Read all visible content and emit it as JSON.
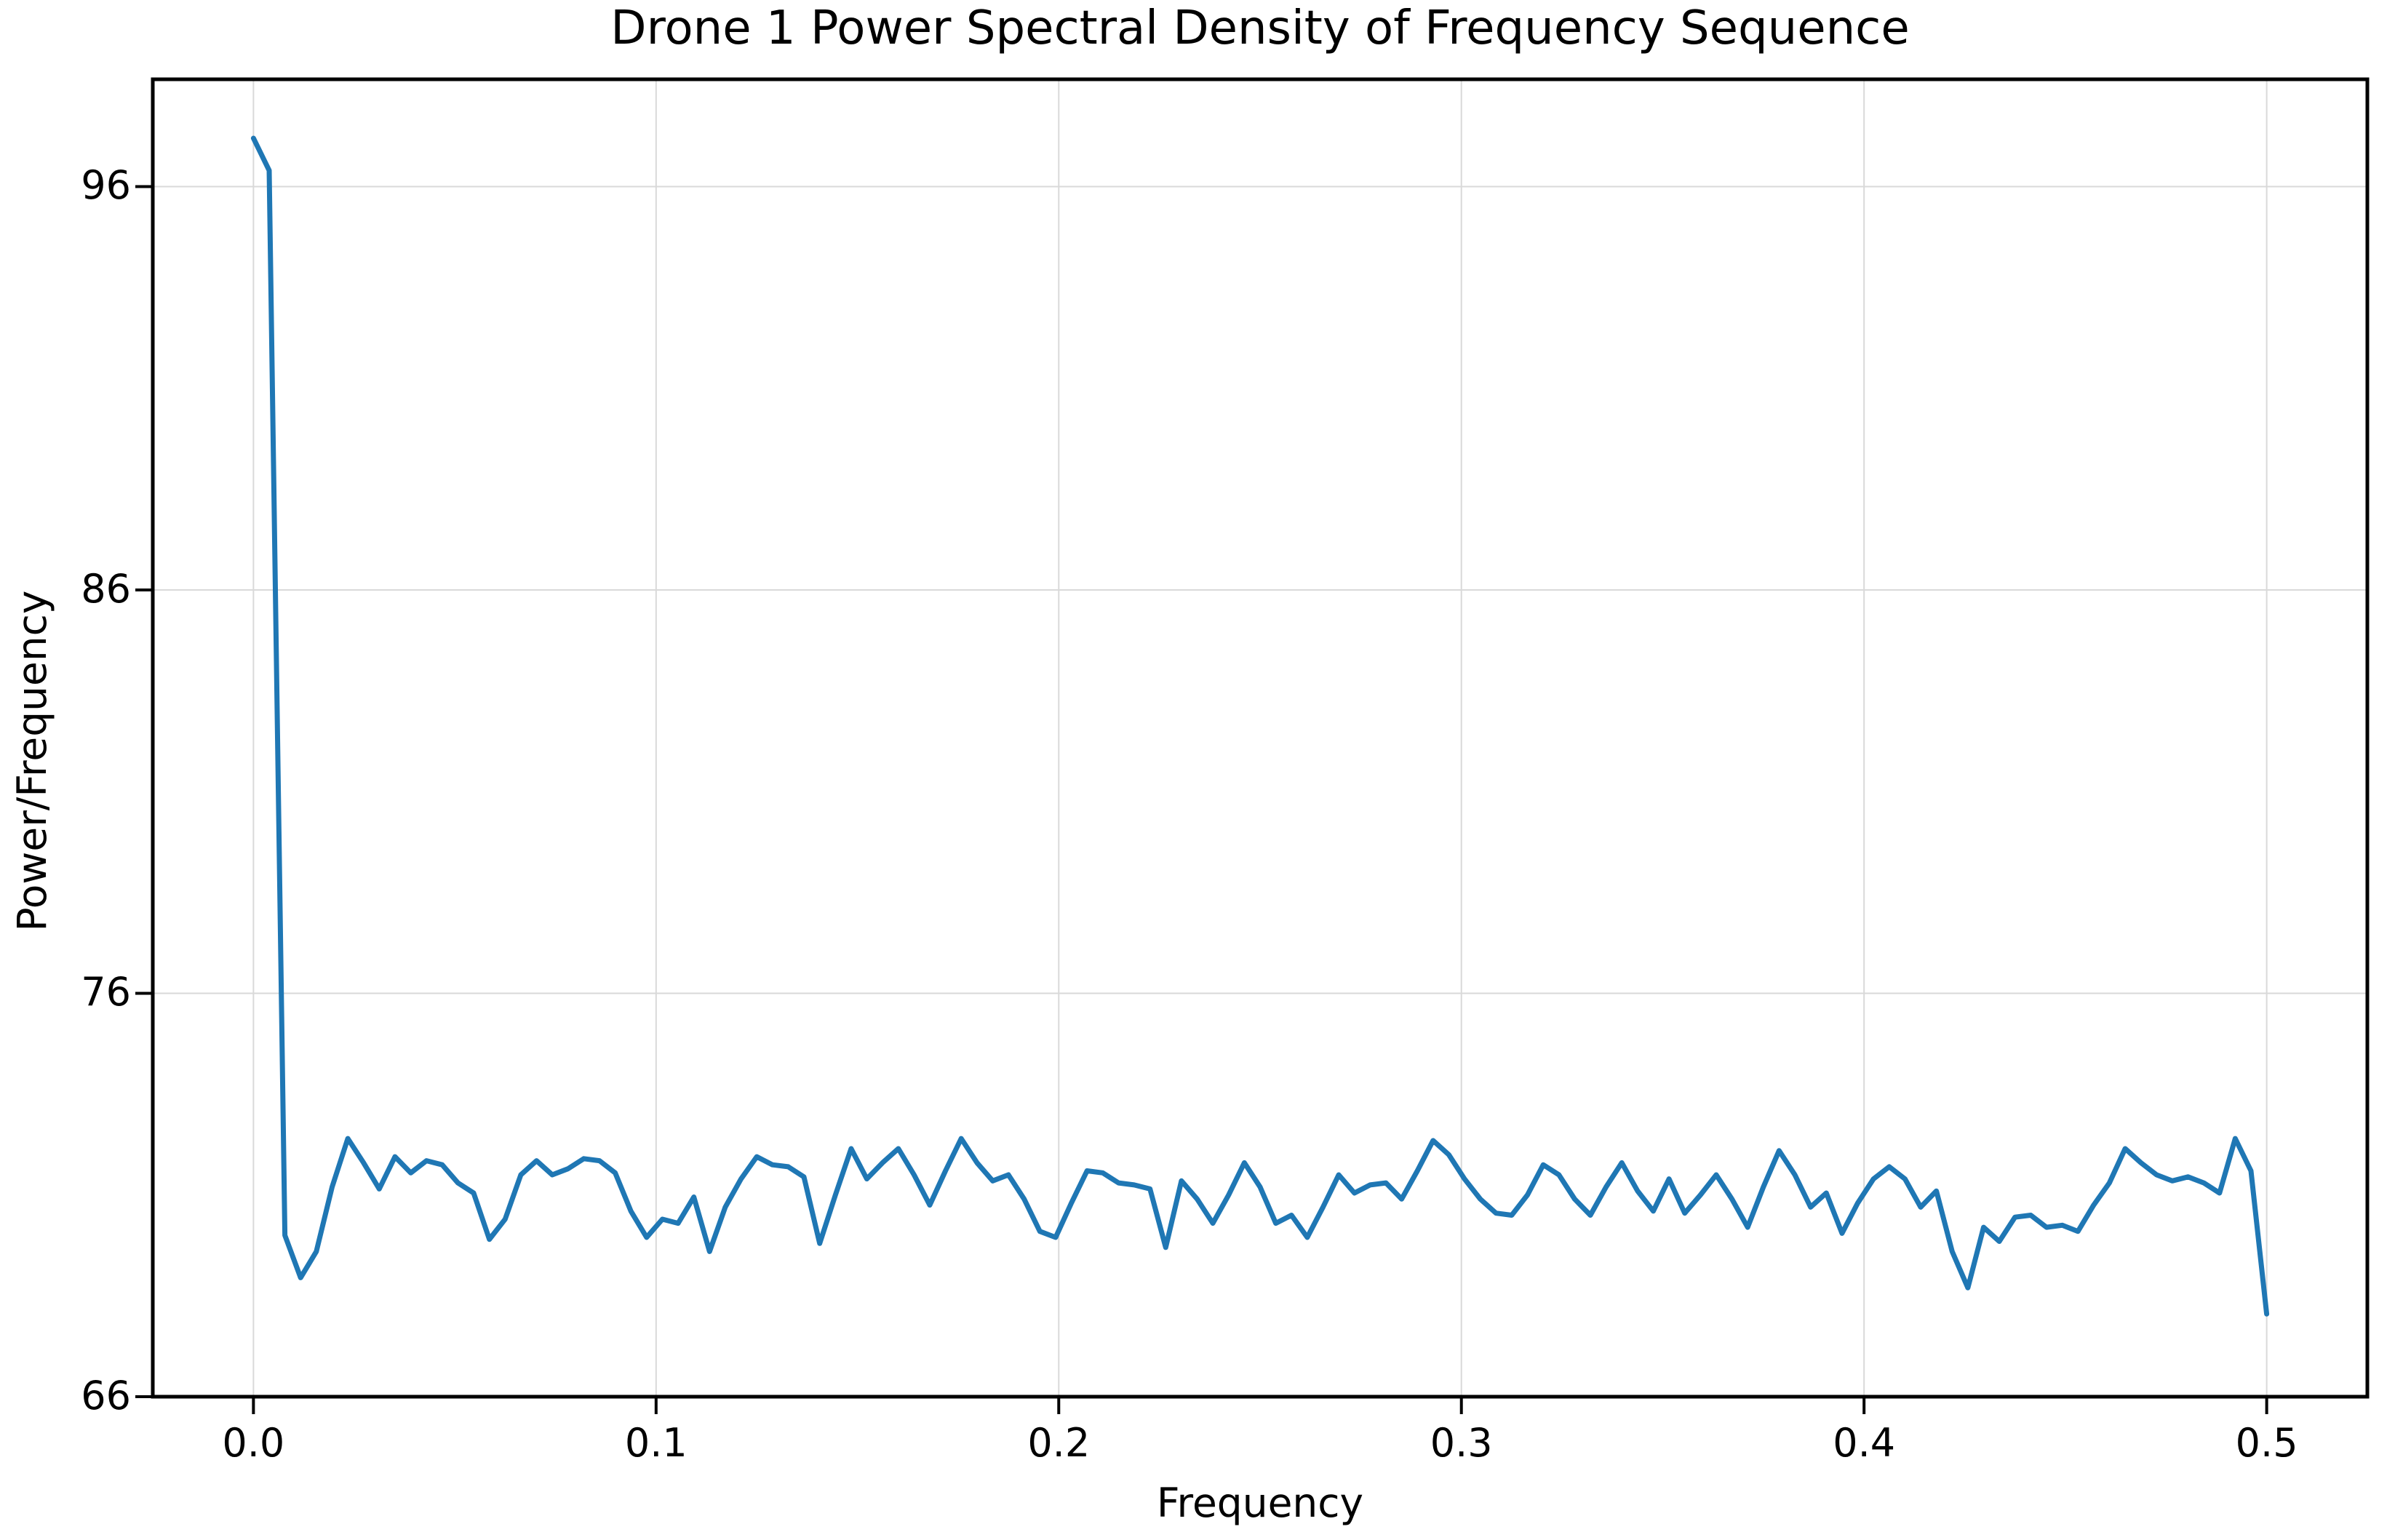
{
  "title": "Drone 1 Power Spectral Density of Frequency Sequence",
  "axes": {
    "xlabel": "Frequency",
    "ylabel": "Power/Frequency",
    "x_tick_labels": [
      "0.0",
      "0.1",
      "0.2",
      "0.3",
      "0.4",
      "0.5"
    ],
    "x_tick_values": [
      0.0,
      0.1,
      0.2,
      0.3,
      0.4,
      0.5
    ],
    "y_tick_labels": [
      "96",
      "86",
      "76",
      "66"
    ],
    "y_tick_values": [
      96,
      86,
      76,
      66
    ]
  },
  "colors": {
    "line": "#1f77b4",
    "grid": "#d9d9d9",
    "spine": "#000000",
    "background": "#ffffff",
    "text": "#000000"
  },
  "chart_data": {
    "type": "line",
    "title": "Drone 1 Power Spectral Density of Frequency Sequence",
    "xlabel": "Frequency",
    "ylabel": "Power/Frequency",
    "legend_position": "none",
    "grid": "on",
    "xlim": [
      -0.025,
      0.525
    ],
    "ylim": [
      66,
      98.66
    ],
    "x_start": 0,
    "x_step": 0.00390625,
    "x": [
      0.0,
      0.003906,
      0.007813,
      0.011719,
      0.015625,
      0.019531,
      0.023438,
      0.027344,
      0.03125,
      0.035156,
      0.039063,
      0.042969,
      0.046875,
      0.050781,
      0.054688,
      0.058594,
      0.0625,
      0.066406,
      0.070313,
      0.074219,
      0.078125,
      0.082031,
      0.085938,
      0.089844,
      0.09375,
      0.097656,
      0.101563,
      0.105469,
      0.109375,
      0.113281,
      0.117188,
      0.121094,
      0.125,
      0.128906,
      0.132813,
      0.136719,
      0.140625,
      0.144531,
      0.148438,
      0.152344,
      0.15625,
      0.160156,
      0.164063,
      0.167969,
      0.171875,
      0.175781,
      0.179688,
      0.183594,
      0.1875,
      0.191406,
      0.195313,
      0.199219,
      0.203125,
      0.207031,
      0.210938,
      0.214844,
      0.21875,
      0.222656,
      0.226563,
      0.230469,
      0.234375,
      0.238281,
      0.242188,
      0.246094,
      0.25,
      0.253906,
      0.257813,
      0.261719,
      0.265625,
      0.269531,
      0.273438,
      0.277344,
      0.28125,
      0.285156,
      0.289063,
      0.292969,
      0.296875,
      0.300781,
      0.304688,
      0.308594,
      0.3125,
      0.316406,
      0.320313,
      0.324219,
      0.328125,
      0.332031,
      0.335938,
      0.339844,
      0.34375,
      0.347656,
      0.351563,
      0.355469,
      0.359375,
      0.363281,
      0.367188,
      0.371094,
      0.375,
      0.378906,
      0.382813,
      0.386719,
      0.390625,
      0.394531,
      0.398438,
      0.402344,
      0.40625,
      0.410156,
      0.414063,
      0.417969,
      0.421875,
      0.425781,
      0.429688,
      0.433594,
      0.4375,
      0.441406,
      0.445313,
      0.449219,
      0.453125,
      0.457031,
      0.460938,
      0.464844,
      0.46875,
      0.472656,
      0.476563,
      0.480469,
      0.484375,
      0.488281,
      0.492188,
      0.496094,
      0.5
    ],
    "values": [
      97.2,
      96.4,
      70.0,
      68.95,
      69.6,
      71.2,
      72.4,
      71.8,
      71.15,
      71.95,
      71.55,
      71.85,
      71.75,
      71.3,
      71.05,
      69.9,
      70.4,
      71.5,
      71.85,
      71.5,
      71.65,
      71.9,
      71.85,
      71.55,
      70.6,
      69.95,
      70.4,
      70.3,
      70.95,
      69.6,
      70.7,
      71.4,
      71.95,
      71.75,
      71.7,
      71.45,
      69.8,
      71.0,
      72.15,
      71.4,
      71.8,
      72.15,
      71.5,
      70.75,
      71.6,
      72.4,
      71.8,
      71.35,
      71.5,
      70.9,
      70.1,
      69.95,
      70.8,
      71.6,
      71.55,
      71.3,
      71.25,
      71.15,
      69.7,
      71.35,
      70.9,
      70.3,
      71.0,
      71.8,
      71.2,
      70.3,
      70.5,
      69.95,
      70.7,
      71.5,
      71.05,
      71.25,
      71.3,
      70.9,
      71.6,
      72.35,
      72.0,
      71.4,
      70.9,
      70.55,
      70.5,
      71.0,
      71.75,
      71.5,
      70.9,
      70.5,
      71.2,
      71.8,
      71.1,
      70.6,
      71.4,
      70.55,
      71.0,
      71.5,
      70.9,
      70.2,
      71.2,
      72.1,
      71.5,
      70.7,
      71.05,
      70.05,
      70.8,
      71.4,
      71.7,
      71.4,
      70.7,
      71.1,
      69.6,
      68.7,
      70.2,
      69.85,
      70.45,
      70.5,
      70.2,
      70.25,
      70.1,
      70.75,
      71.3,
      72.15,
      71.8,
      71.5,
      71.35,
      71.45,
      71.3,
      71.05,
      72.4,
      71.6,
      68.05
    ]
  }
}
